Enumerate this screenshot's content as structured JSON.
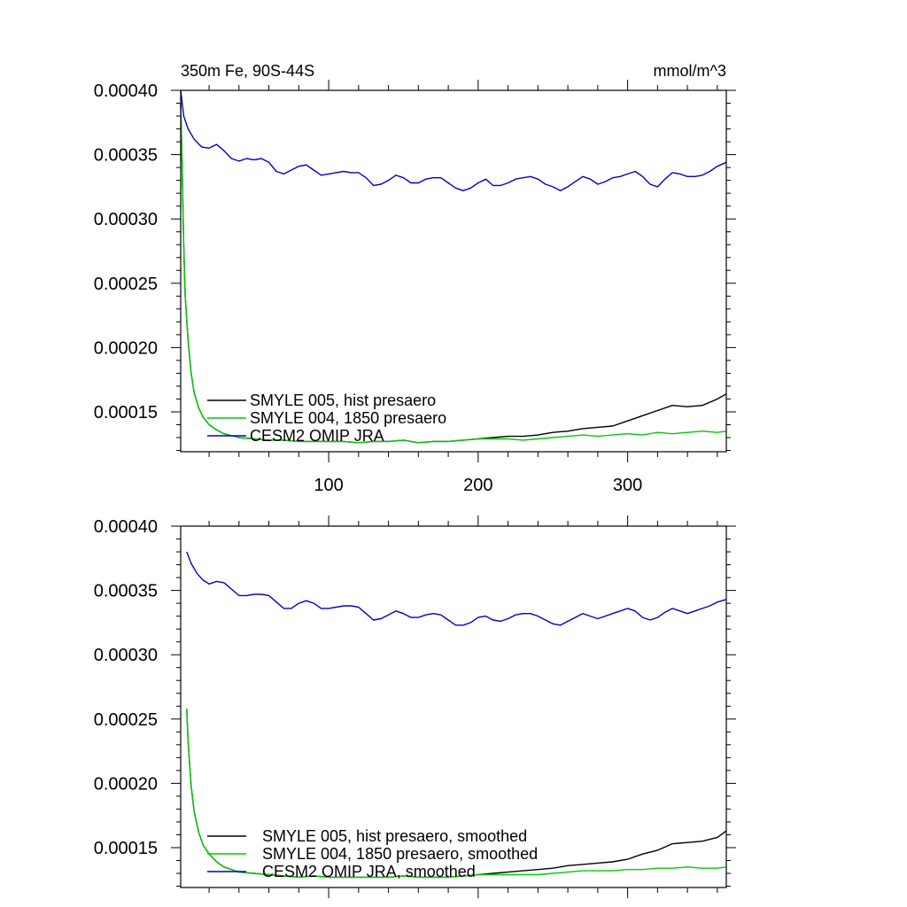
{
  "chart_data": [
    {
      "type": "line",
      "title": "350m Fe, 90S-44S",
      "units": "mmol/m^3",
      "xlim": [
        1,
        366
      ],
      "ylim": [
        0.000119,
        0.0004
      ],
      "x_ticks": [
        100,
        200,
        300
      ],
      "x_tick_labels": [
        "100",
        "200",
        "300"
      ],
      "y_ticks": [
        0.00015,
        0.0002,
        0.00025,
        0.0003,
        0.00035,
        0.0004
      ],
      "y_tick_labels": [
        "0.00015",
        "0.00020",
        "0.00025",
        "0.00030",
        "0.00035",
        "0.00040"
      ],
      "legend_position": "bottom-left",
      "series": [
        {
          "name": "SMYLE 005, hist presaero",
          "color": "#000000",
          "x": [
            1,
            2,
            3,
            4,
            6,
            8,
            10,
            13,
            16,
            20,
            25,
            30,
            40,
            50,
            60,
            70,
            80,
            90,
            100,
            110,
            120,
            130,
            140,
            150,
            160,
            170,
            180,
            190,
            200,
            210,
            220,
            230,
            240,
            250,
            260,
            270,
            280,
            290,
            300,
            310,
            320,
            330,
            340,
            350,
            360,
            366
          ],
          "values": [
            0.00039,
            0.00034,
            0.00028,
            0.00024,
            0.000205,
            0.00018,
            0.000165,
            0.000153,
            0.000146,
            0.00014,
            0.000136,
            0.000133,
            0.00013,
            0.000129,
            0.000128,
            0.000128,
            0.000127,
            0.000127,
            0.000127,
            0.000127,
            0.000126,
            0.000127,
            0.000127,
            0.000128,
            0.000126,
            0.000127,
            0.000127,
            0.000128,
            0.000129,
            0.00013,
            0.000131,
            0.000131,
            0.000132,
            0.000134,
            0.000135,
            0.000137,
            0.000138,
            0.000139,
            0.000143,
            0.000147,
            0.000151,
            0.000155,
            0.000154,
            0.000155,
            0.00016,
            0.000164
          ]
        },
        {
          "name": "SMYLE 004, 1850 presaero",
          "color": "#00cc00",
          "x": [
            1,
            2,
            3,
            4,
            6,
            8,
            10,
            13,
            16,
            20,
            25,
            30,
            40,
            50,
            60,
            70,
            80,
            90,
            100,
            110,
            120,
            130,
            140,
            150,
            160,
            170,
            180,
            190,
            200,
            210,
            220,
            230,
            240,
            250,
            260,
            270,
            280,
            290,
            300,
            310,
            320,
            330,
            340,
            350,
            360,
            366
          ],
          "values": [
            0.00039,
            0.00034,
            0.00028,
            0.00024,
            0.000205,
            0.00018,
            0.000165,
            0.000153,
            0.000146,
            0.00014,
            0.000136,
            0.000133,
            0.00013,
            0.000129,
            0.000128,
            0.000128,
            0.000127,
            0.000127,
            0.000127,
            0.000127,
            0.000126,
            0.000127,
            0.000127,
            0.000128,
            0.000126,
            0.000127,
            0.000127,
            0.000128,
            0.000129,
            0.000129,
            0.000129,
            0.000128,
            0.000129,
            0.00013,
            0.000131,
            0.000132,
            0.000131,
            0.000132,
            0.000133,
            0.000132,
            0.000134,
            0.000133,
            0.000134,
            0.000135,
            0.000134,
            0.000135
          ]
        },
        {
          "name": "CESM2 OMIP JRA",
          "color": "#0000cc",
          "x": [
            1,
            3,
            6,
            10,
            15,
            20,
            25,
            30,
            35,
            40,
            45,
            50,
            55,
            60,
            65,
            70,
            75,
            80,
            85,
            90,
            95,
            100,
            105,
            110,
            115,
            120,
            125,
            130,
            135,
            140,
            145,
            150,
            155,
            160,
            165,
            170,
            175,
            180,
            185,
            190,
            195,
            200,
            205,
            210,
            215,
            220,
            225,
            230,
            235,
            240,
            245,
            250,
            255,
            260,
            265,
            270,
            275,
            280,
            285,
            290,
            295,
            300,
            305,
            310,
            315,
            320,
            325,
            330,
            335,
            340,
            345,
            350,
            355,
            360,
            366
          ],
          "values": [
            0.0004,
            0.00038,
            0.00037,
            0.000362,
            0.000356,
            0.000355,
            0.000358,
            0.000353,
            0.000347,
            0.000345,
            0.000347,
            0.000346,
            0.000347,
            0.000344,
            0.000337,
            0.000335,
            0.000338,
            0.000341,
            0.000342,
            0.000338,
            0.000334,
            0.000335,
            0.000336,
            0.000337,
            0.000336,
            0.000336,
            0.000332,
            0.000326,
            0.000327,
            0.00033,
            0.000334,
            0.000332,
            0.000328,
            0.000328,
            0.000331,
            0.000332,
            0.000332,
            0.000328,
            0.000324,
            0.000322,
            0.000324,
            0.000328,
            0.000331,
            0.000326,
            0.000326,
            0.000328,
            0.000331,
            0.000332,
            0.000333,
            0.000331,
            0.000327,
            0.000325,
            0.000322,
            0.000325,
            0.000329,
            0.000333,
            0.000331,
            0.000327,
            0.000329,
            0.000332,
            0.000333,
            0.000335,
            0.000337,
            0.000333,
            0.000327,
            0.000325,
            0.000331,
            0.000336,
            0.000335,
            0.000333,
            0.000333,
            0.000334,
            0.000337,
            0.000341,
            0.000344
          ]
        }
      ]
    },
    {
      "type": "line",
      "xlim": [
        1,
        366
      ],
      "ylim": [
        0.000119,
        0.0004
      ],
      "x_ticks": [
        100,
        200,
        300
      ],
      "y_ticks": [
        0.00015,
        0.0002,
        0.00025,
        0.0003,
        0.00035,
        0.0004
      ],
      "y_tick_labels": [
        "0.00015",
        "0.00020",
        "0.00025",
        "0.00030",
        "0.00035",
        "0.00040"
      ],
      "legend_position": "bottom-left",
      "series": [
        {
          "name": "SMYLE 005, hist presaero, smoothed",
          "color": "#000000",
          "x": [
            5,
            6,
            8,
            10,
            13,
            16,
            20,
            25,
            30,
            40,
            50,
            60,
            70,
            80,
            90,
            100,
            110,
            120,
            130,
            140,
            150,
            160,
            170,
            180,
            190,
            200,
            210,
            220,
            230,
            240,
            250,
            260,
            270,
            280,
            290,
            300,
            310,
            320,
            330,
            340,
            350,
            360,
            366
          ],
          "values": [
            0.000258,
            0.000232,
            0.000198,
            0.000178,
            0.000162,
            0.000152,
            0.000145,
            0.000139,
            0.000135,
            0.000131,
            0.00013,
            0.000129,
            0.000128,
            0.000127,
            0.000128,
            0.000127,
            0.000127,
            0.000127,
            0.000127,
            0.000127,
            0.000128,
            0.000127,
            0.000127,
            0.000127,
            0.000128,
            0.000129,
            0.00013,
            0.000131,
            0.000132,
            0.000133,
            0.000134,
            0.000136,
            0.000137,
            0.000138,
            0.000139,
            0.000141,
            0.000145,
            0.000148,
            0.000153,
            0.000154,
            0.000155,
            0.000158,
            0.000163
          ]
        },
        {
          "name": "SMYLE 004, 1850 presaero, smoothed",
          "color": "#00cc00",
          "x": [
            5,
            6,
            8,
            10,
            13,
            16,
            20,
            25,
            30,
            40,
            50,
            60,
            70,
            80,
            90,
            100,
            110,
            120,
            130,
            140,
            150,
            160,
            170,
            180,
            190,
            200,
            210,
            220,
            230,
            240,
            250,
            260,
            270,
            280,
            290,
            300,
            310,
            320,
            330,
            340,
            350,
            360,
            366
          ],
          "values": [
            0.000258,
            0.000232,
            0.000198,
            0.000178,
            0.000162,
            0.000152,
            0.000145,
            0.000139,
            0.000135,
            0.000131,
            0.00013,
            0.000129,
            0.000128,
            0.000127,
            0.000128,
            0.000127,
            0.000127,
            0.000127,
            0.000127,
            0.000127,
            0.000128,
            0.000127,
            0.000127,
            0.000127,
            0.000128,
            0.000129,
            0.000129,
            0.000129,
            0.000129,
            0.000129,
            0.00013,
            0.000131,
            0.000132,
            0.000132,
            0.000132,
            0.000133,
            0.000133,
            0.000134,
            0.000134,
            0.000135,
            0.000134,
            0.000134,
            0.000135
          ]
        },
        {
          "name": "CESM2 OMIP JRA, smoothed",
          "color": "#0000cc",
          "x": [
            5,
            8,
            12,
            16,
            20,
            25,
            30,
            35,
            40,
            45,
            50,
            55,
            60,
            65,
            70,
            75,
            80,
            85,
            90,
            95,
            100,
            105,
            110,
            115,
            120,
            125,
            130,
            135,
            140,
            145,
            150,
            155,
            160,
            165,
            170,
            175,
            180,
            185,
            190,
            195,
            200,
            205,
            210,
            215,
            220,
            225,
            230,
            235,
            240,
            245,
            250,
            255,
            260,
            265,
            270,
            275,
            280,
            285,
            290,
            295,
            300,
            305,
            310,
            315,
            320,
            325,
            330,
            335,
            340,
            345,
            350,
            355,
            360,
            366
          ],
          "values": [
            0.00038,
            0.000371,
            0.000363,
            0.000358,
            0.000355,
            0.000357,
            0.000356,
            0.000351,
            0.000346,
            0.000346,
            0.000347,
            0.000347,
            0.000346,
            0.000341,
            0.000336,
            0.000336,
            0.00034,
            0.000342,
            0.00034,
            0.000336,
            0.000336,
            0.000337,
            0.000338,
            0.000338,
            0.000337,
            0.000332,
            0.000327,
            0.000328,
            0.000331,
            0.000334,
            0.000332,
            0.000329,
            0.000329,
            0.000331,
            0.000332,
            0.000331,
            0.000327,
            0.000323,
            0.000323,
            0.000325,
            0.000329,
            0.00033,
            0.000327,
            0.000326,
            0.000328,
            0.000331,
            0.000332,
            0.000332,
            0.00033,
            0.000327,
            0.000324,
            0.000323,
            0.000326,
            0.000329,
            0.000332,
            0.00033,
            0.000328,
            0.00033,
            0.000332,
            0.000334,
            0.000336,
            0.000334,
            0.000329,
            0.000327,
            0.000329,
            0.000333,
            0.000336,
            0.000334,
            0.000332,
            0.000334,
            0.000336,
            0.000338,
            0.000341,
            0.000343
          ]
        }
      ]
    }
  ]
}
